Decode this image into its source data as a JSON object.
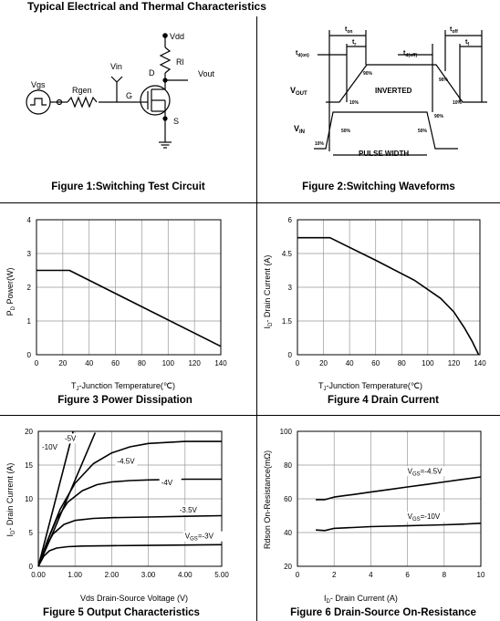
{
  "page": {
    "title": "Typical Electrical and Thermal Characteristics"
  },
  "fig1": {
    "caption": "Figure 1:Switching Test Circuit",
    "labels": {
      "vdd": "Vdd",
      "rl": "Rl",
      "vout": "Vout",
      "vin": "Vin",
      "vgs": "Vgs",
      "rgen": "Rgen",
      "g": "G",
      "d": "D",
      "s": "S"
    }
  },
  "fig2": {
    "caption": "Figure 2:Switching Waveforms",
    "labels": {
      "ton": "t",
      "ton_sub": "on",
      "tr": "t",
      "tr_sub": "r",
      "tdon": "t",
      "tdon_sub": "d(on)",
      "tdoff": "t",
      "tdoff_sub": "d(off)",
      "toff": "t",
      "toff_sub": "off",
      "tf": "t",
      "tf_sub": "f",
      "vout": "V",
      "vout_sub": "OUT",
      "vin": "V",
      "vin_sub": "IN",
      "inverted": "INVERTED",
      "pulse_width": "PULSE WIDTH",
      "p90a": "90%",
      "p90b": "90%",
      "p10a": "10%",
      "p10b": "10%",
      "p50a": "50%",
      "p50b": "50%",
      "p10c": "10%",
      "p90c": "90%"
    }
  },
  "chart_data": [
    {
      "id": "fig3",
      "type": "line",
      "title": "Figure 3 Power Dissipation",
      "xlabel": "T",
      "xlabel_sub": "J",
      "xlabel_rest": "-Junction Temperature(℃)",
      "ylabel": "P",
      "ylabel_sub": "D",
      "ylabel_rest": " Power(W)",
      "xlim": [
        0,
        140
      ],
      "ylim": [
        0,
        4
      ],
      "xticks": [
        0,
        20,
        40,
        60,
        80,
        100,
        120,
        140
      ],
      "yticks": [
        0,
        1,
        2,
        3,
        4
      ],
      "grid": true,
      "series": [
        {
          "x": [
            0,
            25,
            140
          ],
          "y": [
            2.5,
            2.5,
            0.25
          ]
        }
      ]
    },
    {
      "id": "fig4",
      "type": "line",
      "title": "Figure 4 Drain Current",
      "xlabel": "T",
      "xlabel_sub": "J",
      "xlabel_rest": "-Junction Temperature(℃)",
      "ylabel": "I",
      "ylabel_sub": "D",
      "ylabel_rest": "- Drain Current (A)",
      "xlim": [
        0,
        140
      ],
      "ylim": [
        0,
        6
      ],
      "xticks": [
        0,
        20,
        40,
        60,
        80,
        100,
        120,
        140
      ],
      "yticks": [
        0,
        1.5,
        3,
        4.5,
        6
      ],
      "grid": true,
      "series": [
        {
          "x": [
            0,
            25,
            60,
            90,
            110,
            120,
            128,
            134,
            139
          ],
          "y": [
            5.2,
            5.2,
            4.2,
            3.3,
            2.5,
            1.9,
            1.2,
            0.6,
            0.0
          ]
        }
      ]
    },
    {
      "id": "fig5",
      "type": "line",
      "title": "Figure 5 Output Characteristics",
      "xlabel": "Vds Drain-Source Voltage (V)",
      "ylabel": "I",
      "ylabel_sub": "D",
      "ylabel_rest": "- Drain Current (A)",
      "xlim": [
        0,
        5
      ],
      "ylim": [
        0,
        20
      ],
      "xticks": [
        0,
        1,
        2,
        3,
        4,
        5
      ],
      "xtick_labels": [
        "0.00",
        "1.00",
        "2.00",
        "3.00",
        "4.00",
        "5.00"
      ],
      "yticks": [
        0,
        5,
        10,
        15,
        20
      ],
      "grid": true,
      "series": [
        {
          "name": "-10V",
          "x": [
            0,
            0.25,
            0.5,
            0.75,
            0.95
          ],
          "y": [
            0,
            5.2,
            10.5,
            15.8,
            20
          ]
        },
        {
          "name": "-5V",
          "x": [
            0,
            0.4,
            0.8,
            1.2,
            1.55
          ],
          "y": [
            0,
            5,
            10.2,
            15.3,
            19.8
          ]
        },
        {
          "name": "-4.5V",
          "x": [
            0,
            0.3,
            0.6,
            1.0,
            1.5,
            2.0,
            2.5,
            3.0,
            4.0,
            5.0
          ],
          "y": [
            0,
            4.5,
            8.5,
            12.3,
            15.2,
            16.8,
            17.7,
            18.2,
            18.5,
            18.5
          ]
        },
        {
          "name": "-4V",
          "x": [
            0,
            0.25,
            0.5,
            0.8,
            1.2,
            1.6,
            2.0,
            2.5,
            3.0,
            4.0,
            5.0
          ],
          "y": [
            0,
            3.8,
            7,
            9.5,
            11.2,
            12.1,
            12.5,
            12.7,
            12.8,
            12.9,
            12.9
          ]
        },
        {
          "name": "-3.5V",
          "x": [
            0,
            0.2,
            0.4,
            0.7,
            1.0,
            1.5,
            2.0,
            3.0,
            4.0,
            5.0
          ],
          "y": [
            0,
            2.8,
            4.8,
            6.2,
            6.8,
            7.1,
            7.2,
            7.3,
            7.4,
            7.5
          ]
        },
        {
          "name": "V",
          "name_sub": "GS",
          "name_rest": "=-3V",
          "x": [
            0,
            0.15,
            0.3,
            0.5,
            0.8,
            1.2,
            2.0,
            3.0,
            4.0,
            5.0
          ],
          "y": [
            0,
            1.5,
            2.3,
            2.7,
            2.9,
            3.0,
            3.05,
            3.1,
            3.15,
            3.2
          ]
        }
      ]
    },
    {
      "id": "fig6",
      "type": "line",
      "title": "Figure 6 Drain-Source On-Resistance",
      "xlabel": "I",
      "xlabel_sub": "D",
      "xlabel_rest": "- Drain Current (A)",
      "ylabel": "Rdson On-Resistance(mΩ)",
      "xlim": [
        0,
        10
      ],
      "ylim": [
        20,
        100
      ],
      "xticks": [
        0,
        2,
        4,
        6,
        8,
        10
      ],
      "yticks": [
        20,
        40,
        60,
        80,
        100
      ],
      "grid": true,
      "series": [
        {
          "name": "V",
          "name_sub": "GS",
          "name_rest": "=-4.5V",
          "x": [
            1,
            1.5,
            2,
            3,
            4,
            5,
            6,
            7,
            8,
            9,
            10
          ],
          "y": [
            59.5,
            59.5,
            61,
            62.5,
            64,
            65.5,
            67,
            68.5,
            70,
            71.5,
            73
          ]
        },
        {
          "name": "V",
          "name_sub": "GS",
          "name_rest": "=-10V",
          "x": [
            1,
            1.5,
            2,
            3,
            4,
            5,
            6,
            7,
            8,
            9,
            10
          ],
          "y": [
            41.5,
            41.2,
            42.5,
            43,
            43.5,
            43.8,
            44,
            44.3,
            44.6,
            45,
            45.5
          ]
        }
      ]
    }
  ]
}
